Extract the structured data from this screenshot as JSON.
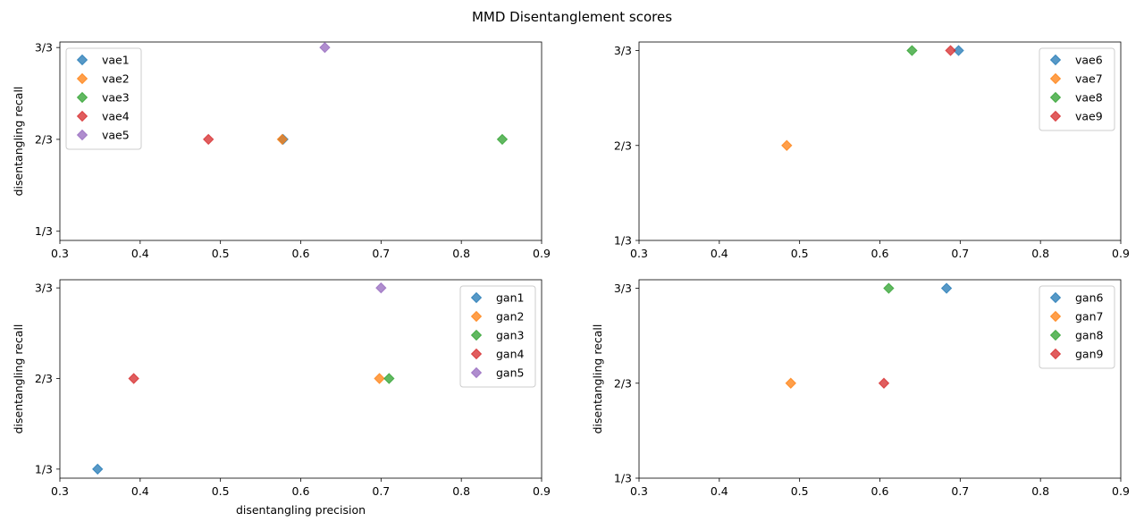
{
  "figure": {
    "title": "MMD Disentanglement scores"
  },
  "chart_data": [
    {
      "type": "scatter",
      "xlabel": "",
      "ylabel": "disentangling recall",
      "xlim": [
        0.3,
        0.9
      ],
      "ylim": [
        0.3,
        1.02
      ],
      "xticks": [
        0.3,
        0.4,
        0.5,
        0.6,
        0.7,
        0.8,
        0.9
      ],
      "xtick_labels": [
        "0.3",
        "0.4",
        "0.5",
        "0.6",
        "0.7",
        "0.8",
        "0.9"
      ],
      "yticks": [
        0.3333,
        0.6667,
        1.0
      ],
      "ytick_labels": [
        "1/3",
        "2/3",
        "3/3"
      ],
      "legend": "upper left",
      "series": [
        {
          "name": "vae1",
          "color": "#1f77b4",
          "x": [
            0.578
          ],
          "y": [
            0.6667
          ]
        },
        {
          "name": "vae2",
          "color": "#ff7f0e",
          "x": [
            0.577
          ],
          "y": [
            0.6667
          ]
        },
        {
          "name": "vae3",
          "color": "#2ca02c",
          "x": [
            0.851
          ],
          "y": [
            0.6667
          ]
        },
        {
          "name": "vae4",
          "color": "#d62728",
          "x": [
            0.485
          ],
          "y": [
            0.6667
          ]
        },
        {
          "name": "vae5",
          "color": "#9467bd",
          "x": [
            0.63
          ],
          "y": [
            1.0
          ]
        }
      ]
    },
    {
      "type": "scatter",
      "xlabel": "",
      "ylabel": "",
      "xlim": [
        0.3,
        0.9
      ],
      "ylim": [
        0.3333,
        1.03
      ],
      "xticks": [
        0.3,
        0.4,
        0.5,
        0.6,
        0.7,
        0.8,
        0.9
      ],
      "xtick_labels": [
        "0.3",
        "0.4",
        "0.5",
        "0.6",
        "0.7",
        "0.8",
        "0.9"
      ],
      "yticks": [
        0.3333,
        0.6667,
        1.0
      ],
      "ytick_labels": [
        "1/3",
        "2/3",
        "3/3"
      ],
      "legend": "upper right",
      "series": [
        {
          "name": "vae6",
          "color": "#1f77b4",
          "x": [
            0.698
          ],
          "y": [
            1.0
          ]
        },
        {
          "name": "vae7",
          "color": "#ff7f0e",
          "x": [
            0.484
          ],
          "y": [
            0.6667
          ]
        },
        {
          "name": "vae8",
          "color": "#2ca02c",
          "x": [
            0.64
          ],
          "y": [
            1.0
          ]
        },
        {
          "name": "vae9",
          "color": "#d62728",
          "x": [
            0.688
          ],
          "y": [
            1.0
          ]
        }
      ]
    },
    {
      "type": "scatter",
      "xlabel": "disentangling precision",
      "ylabel": "disentangling recall",
      "xlim": [
        0.3,
        0.9
      ],
      "ylim": [
        0.3,
        1.03
      ],
      "xticks": [
        0.3,
        0.4,
        0.5,
        0.6,
        0.7,
        0.8,
        0.9
      ],
      "xtick_labels": [
        "0.3",
        "0.4",
        "0.5",
        "0.6",
        "0.7",
        "0.8",
        "0.9"
      ],
      "yticks": [
        0.3333,
        0.6667,
        1.0
      ],
      "ytick_labels": [
        "1/3",
        "2/3",
        "3/3"
      ],
      "legend": "upper right",
      "series": [
        {
          "name": "gan1",
          "color": "#1f77b4",
          "x": [
            0.347
          ],
          "y": [
            0.3333
          ]
        },
        {
          "name": "gan2",
          "color": "#ff7f0e",
          "x": [
            0.698
          ],
          "y": [
            0.6667
          ]
        },
        {
          "name": "gan3",
          "color": "#2ca02c",
          "x": [
            0.71
          ],
          "y": [
            0.6667
          ]
        },
        {
          "name": "gan4",
          "color": "#d62728",
          "x": [
            0.392
          ],
          "y": [
            0.6667
          ]
        },
        {
          "name": "gan5",
          "color": "#9467bd",
          "x": [
            0.7
          ],
          "y": [
            1.0
          ]
        }
      ]
    },
    {
      "type": "scatter",
      "xlabel": "",
      "ylabel": "disentangling recall",
      "xlim": [
        0.3,
        0.9
      ],
      "ylim": [
        0.3333,
        1.03
      ],
      "xticks": [
        0.3,
        0.4,
        0.5,
        0.6,
        0.7,
        0.8,
        0.9
      ],
      "xtick_labels": [
        "0.3",
        "0.4",
        "0.5",
        "0.6",
        "0.7",
        "0.8",
        "0.9"
      ],
      "yticks": [
        0.3333,
        0.6667,
        1.0
      ],
      "ytick_labels": [
        "1/3",
        "2/3",
        "3/3"
      ],
      "legend": "upper right",
      "series": [
        {
          "name": "gan6",
          "color": "#1f77b4",
          "x": [
            0.683
          ],
          "y": [
            1.0
          ]
        },
        {
          "name": "gan7",
          "color": "#ff7f0e",
          "x": [
            0.489
          ],
          "y": [
            0.6667
          ]
        },
        {
          "name": "gan8",
          "color": "#2ca02c",
          "x": [
            0.611
          ],
          "y": [
            1.0
          ]
        },
        {
          "name": "gan9",
          "color": "#d62728",
          "x": [
            0.605
          ],
          "y": [
            0.6667
          ]
        }
      ]
    }
  ]
}
